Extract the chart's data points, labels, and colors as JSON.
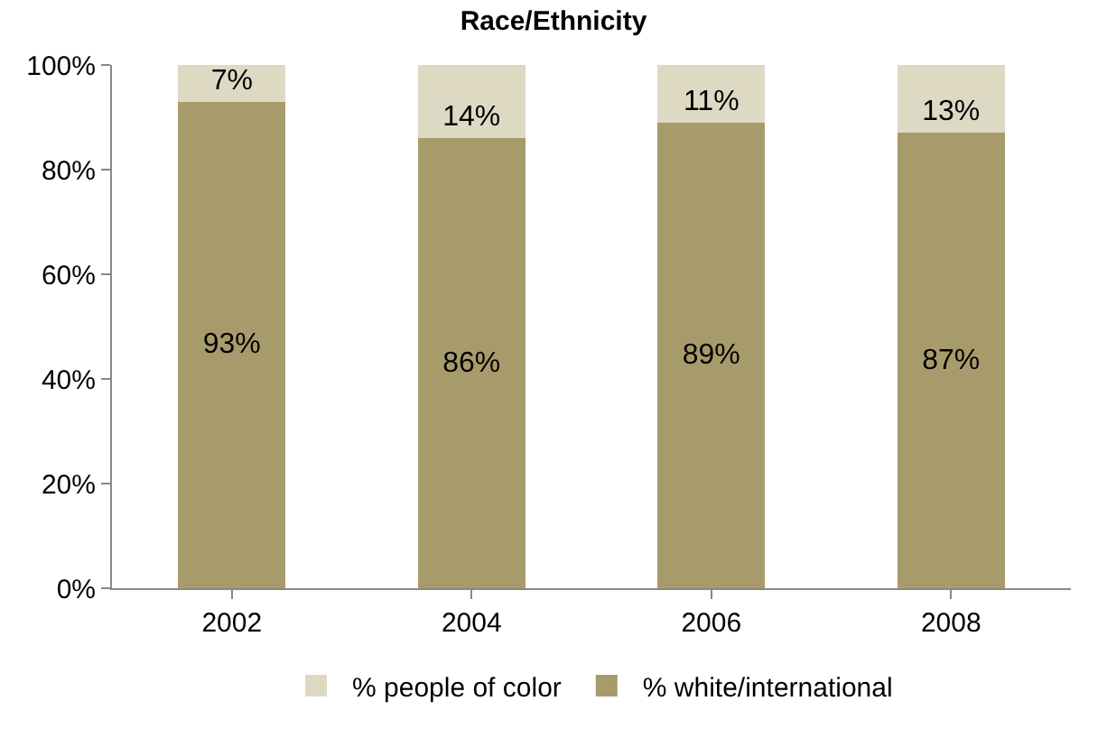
{
  "chart_data": {
    "type": "bar",
    "title": "Race/Ethnicity",
    "stacked": true,
    "categories": [
      "2002",
      "2004",
      "2006",
      "2008"
    ],
    "series": [
      {
        "name": "% white/international",
        "color": "#a89b6b",
        "values": [
          93,
          86,
          89,
          87
        ],
        "value_labels": [
          "93%",
          "86%",
          "89%",
          "87%"
        ]
      },
      {
        "name": "% people of color",
        "color": "#ddd9c3",
        "values": [
          7,
          14,
          11,
          13
        ],
        "value_labels": [
          "7%",
          "14%",
          "11%",
          "13%"
        ]
      }
    ],
    "ylim": [
      0,
      100
    ],
    "yticks": [
      {
        "value": 0,
        "label": "0%"
      },
      {
        "value": 20,
        "label": "20%"
      },
      {
        "value": 40,
        "label": "40%"
      },
      {
        "value": 60,
        "label": "60%"
      },
      {
        "value": 80,
        "label": "80%"
      },
      {
        "value": 100,
        "label": "100%"
      }
    ],
    "legend": "bottom"
  }
}
